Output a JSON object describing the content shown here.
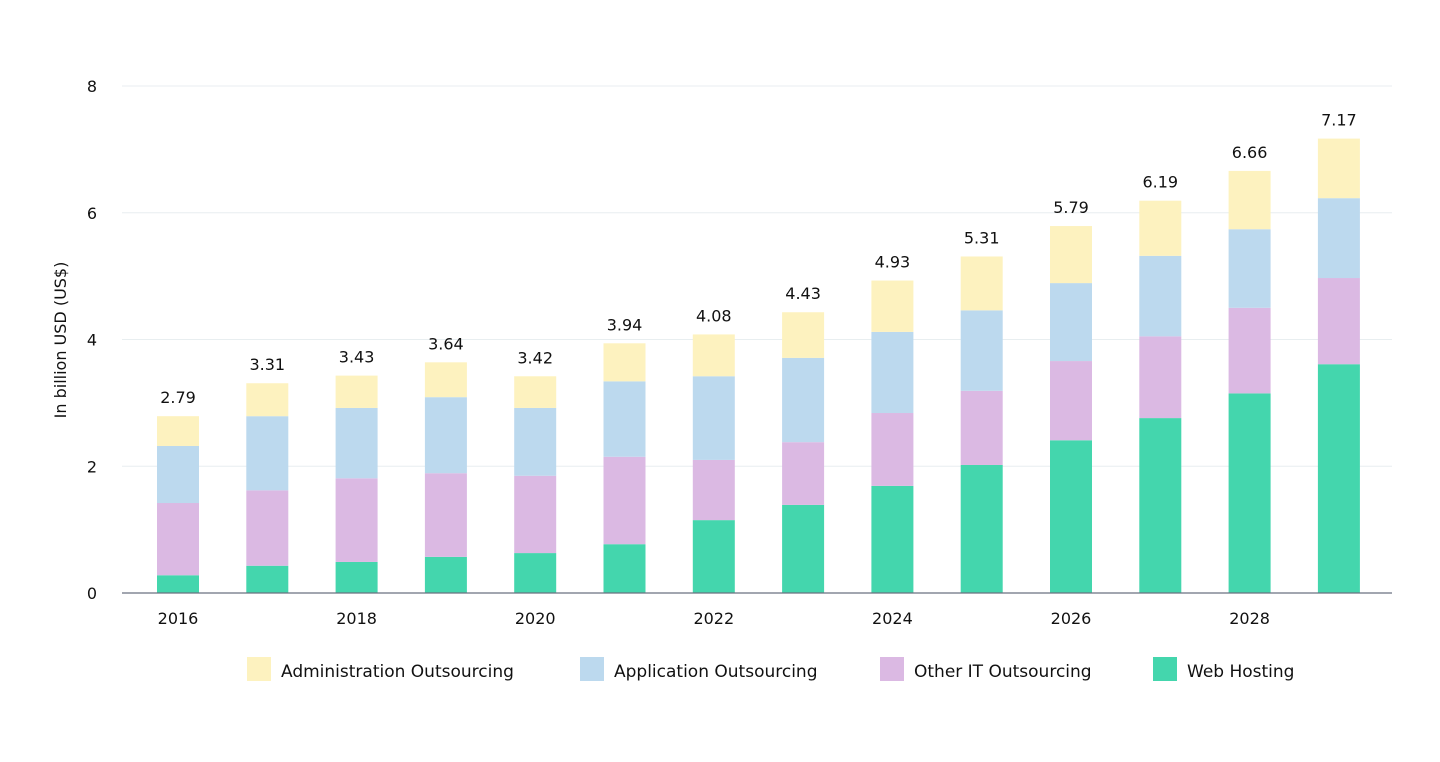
{
  "chart_data": {
    "type": "bar",
    "stacked": true,
    "ylabel": "In billion USD (US$)",
    "xlabel": "",
    "ylim": [
      0,
      8
    ],
    "yticks": [
      0,
      2,
      4,
      6,
      8
    ],
    "grid": true,
    "legend_placement": "bottom",
    "categories": [
      "2016",
      "2017",
      "2018",
      "2019",
      "2020",
      "2021",
      "2022",
      "2023",
      "2024",
      "2025",
      "2026",
      "2027",
      "2028",
      "2029"
    ],
    "xtick_labels": [
      "2016",
      "",
      "2018",
      "",
      "2020",
      "",
      "2022",
      "",
      "2024",
      "",
      "2026",
      "",
      "2028",
      ""
    ],
    "totals": [
      2.79,
      3.31,
      3.43,
      3.64,
      3.42,
      3.94,
      4.08,
      4.43,
      4.93,
      5.31,
      5.79,
      6.19,
      6.66,
      7.17
    ],
    "total_labels": [
      "2.79",
      "3.31",
      "3.43",
      "3.64",
      "3.42",
      "3.94",
      "4.08",
      "4.43",
      "4.93",
      "5.31",
      "5.79",
      "6.19",
      "6.66",
      "7.17"
    ],
    "series": [
      {
        "name": "Web Hosting",
        "color": "#44d6ad",
        "values": [
          0.28,
          0.43,
          0.49,
          0.57,
          0.63,
          0.77,
          1.15,
          1.39,
          1.69,
          2.02,
          2.41,
          2.76,
          3.15,
          3.61
        ]
      },
      {
        "name": "Other IT Outsourcing",
        "color": "#dbb9e3",
        "values": [
          1.14,
          1.19,
          1.32,
          1.32,
          1.22,
          1.38,
          0.95,
          0.99,
          1.15,
          1.17,
          1.25,
          1.29,
          1.35,
          1.36
        ]
      },
      {
        "name": "Application Outsourcing",
        "color": "#bcd9ee",
        "values": [
          0.9,
          1.17,
          1.11,
          1.2,
          1.07,
          1.19,
          1.32,
          1.33,
          1.28,
          1.27,
          1.23,
          1.27,
          1.24,
          1.26
        ]
      },
      {
        "name": "Administration Outsourcing",
        "color": "#fdf2bf",
        "values": [
          0.47,
          0.52,
          0.51,
          0.55,
          0.5,
          0.6,
          0.66,
          0.72,
          0.81,
          0.85,
          0.9,
          0.87,
          0.92,
          0.94
        ]
      }
    ],
    "legend_order": [
      "Administration Outsourcing",
      "Application Outsourcing",
      "Other IT Outsourcing",
      "Web Hosting"
    ]
  }
}
